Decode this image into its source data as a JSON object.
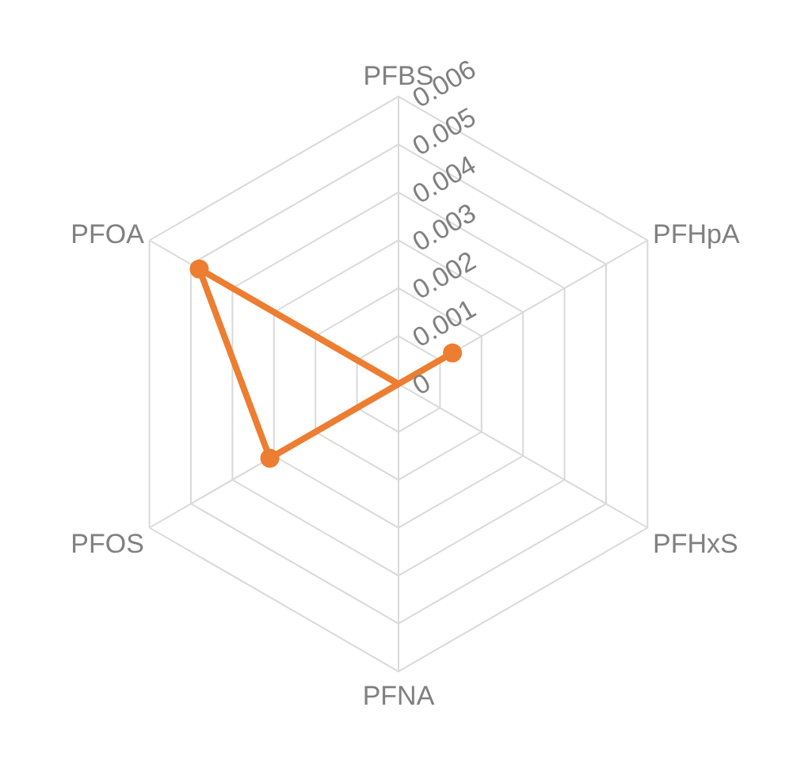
{
  "chart_data": {
    "type": "radar",
    "categories": [
      "PFBS",
      "PFHpA",
      "PFHxS",
      "PFNA",
      "PFOS",
      "PFOA"
    ],
    "series": [
      {
        "color": "#ed7d31",
        "values": [
          0,
          0.0013,
          0,
          0,
          0.0031,
          0.0048
        ]
      }
    ],
    "ylim": [
      0,
      0.006
    ],
    "yticks": [
      0,
      0.001,
      0.002,
      0.003,
      0.004,
      0.005,
      0.006
    ],
    "grid": true,
    "marker": "circle",
    "line_style": "solid"
  }
}
